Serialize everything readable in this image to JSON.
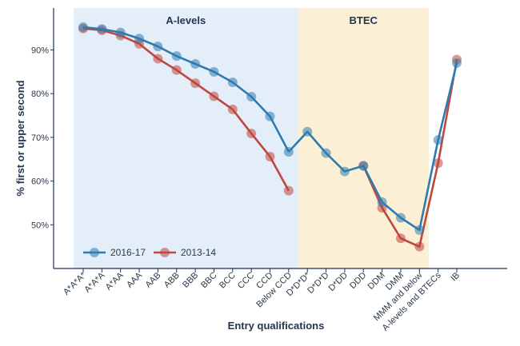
{
  "chart_data": {
    "type": "line",
    "xlabel": "Entry qualifications",
    "ylabel": "% first or upper second",
    "ylim": [
      40,
      100
    ],
    "yticks": [
      50,
      60,
      70,
      80,
      90
    ],
    "ytick_labels": [
      "50%",
      "60%",
      "70%",
      "80%",
      "90%"
    ],
    "categories": [
      "A*A*A*",
      "A*A*A",
      "A*AA",
      "AAA",
      "AAB",
      "ABB",
      "BBB",
      "BBC",
      "BCC",
      "CCC",
      "CCD",
      "Below CCD",
      "D*D*D*",
      "D*D*D",
      "D*DD",
      "DDD",
      "DDM",
      "DMM",
      "MMM and below",
      "A-levels and BTECs",
      "IB"
    ],
    "regions": [
      {
        "label": "A-levels",
        "from": "A*A*A*",
        "to": "Below CCD",
        "color": "#e4eef8"
      },
      {
        "label": "BTEC",
        "from": "D*D*D*",
        "to": "MMM and below",
        "color": "#fbf0d5"
      }
    ],
    "legend_position": "bottom-left",
    "series": [
      {
        "name": "2016-17",
        "color": "#2f7bb0",
        "segments": [
          [
            95.2,
            94.8,
            94.0,
            92.6,
            90.8,
            88.6,
            86.8,
            85.0,
            82.6,
            79.3,
            74.8,
            66.7
          ],
          [
            null,
            null,
            null,
            null,
            null,
            null,
            null,
            null,
            null,
            null,
            null,
            66.7,
            71.3,
            66.4,
            62.2,
            63.5,
            55.2,
            51.6,
            48.8,
            69.4,
            87.0
          ]
        ]
      },
      {
        "name": "2013-14",
        "color": "#c0463e",
        "segments": [
          [
            94.9,
            94.5,
            93.3,
            91.4,
            88.0,
            85.4,
            82.4,
            79.4,
            76.4,
            70.9,
            65.6,
            57.8
          ],
          [
            null,
            null,
            null,
            null,
            null,
            null,
            null,
            null,
            null,
            null,
            null,
            null,
            null,
            null,
            null,
            63.5,
            53.9,
            46.9,
            45.0,
            64.1,
            87.8
          ]
        ]
      }
    ]
  }
}
